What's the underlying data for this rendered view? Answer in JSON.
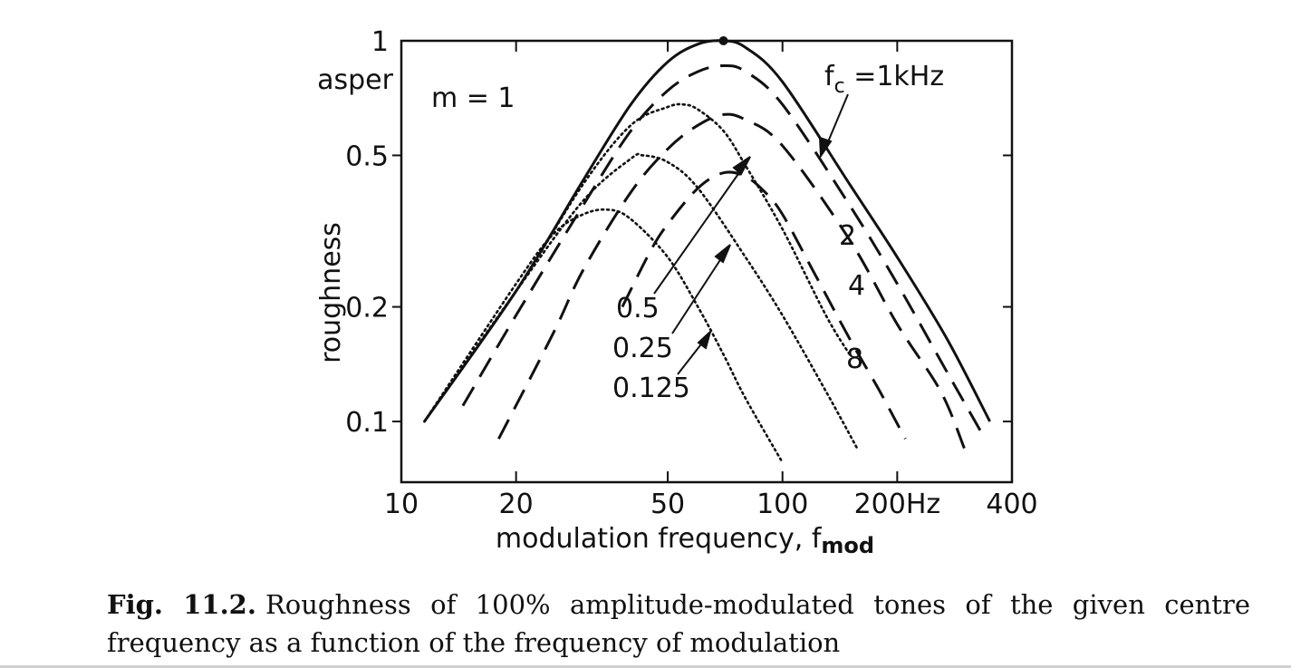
{
  "caption": {
    "label": "Fig. 11.2.",
    "text": "Roughness of 100% amplitude-modulated tones of the given centre frequency as a function of the frequency of modulation"
  },
  "chart_data": {
    "type": "line",
    "xlabel": "modulation frequency, f",
    "xlabel_sub": "mod",
    "ylabel": "roughness",
    "y_unit": "asper",
    "x_scale": "log",
    "y_scale": "log",
    "xlim": [
      10,
      400
    ],
    "ylim": [
      0.08,
      1
    ],
    "x_ticks": [
      {
        "value": 10,
        "label": "10"
      },
      {
        "value": 20,
        "label": "20"
      },
      {
        "value": 50,
        "label": "50"
      },
      {
        "value": 100,
        "label": "100"
      },
      {
        "value": 200,
        "label": "200Hz"
      },
      {
        "value": 400,
        "label": "400"
      }
    ],
    "y_ticks": [
      {
        "value": 1,
        "label": "1"
      },
      {
        "value": 0.5,
        "label": "0.5"
      },
      {
        "value": 0.2,
        "label": "0.2"
      },
      {
        "value": 0.1,
        "label": "0.1"
      }
    ],
    "annotations": [
      {
        "text": "m = 1"
      },
      {
        "text": "f",
        "sub": "c",
        "suffix": " =1kHz"
      },
      {
        "text": "2"
      },
      {
        "text": "4"
      },
      {
        "text": "8"
      },
      {
        "text": "0.5"
      },
      {
        "text": "0.25"
      },
      {
        "text": "0.125"
      }
    ],
    "series": [
      {
        "name": "1kHz",
        "style": "solid",
        "peak_marker": true,
        "x": [
          11.5,
          20,
          30,
          40,
          50,
          60,
          70,
          80,
          100,
          150,
          200,
          270,
          350
        ],
        "y": [
          0.1,
          0.22,
          0.43,
          0.68,
          0.88,
          0.98,
          1.0,
          0.96,
          0.78,
          0.42,
          0.27,
          0.165,
          0.1
        ]
      },
      {
        "name": "2",
        "style": "dash",
        "x": [
          14.5,
          20,
          30,
          40,
          50,
          60,
          70,
          80,
          100,
          150,
          200,
          270,
          340
        ],
        "y": [
          0.11,
          0.19,
          0.37,
          0.58,
          0.74,
          0.83,
          0.86,
          0.83,
          0.68,
          0.37,
          0.23,
          0.135,
          0.09
        ]
      },
      {
        "name": "4",
        "style": "dash",
        "x": [
          18,
          25,
          30,
          40,
          50,
          60,
          70,
          80,
          100,
          150,
          200,
          260,
          300
        ],
        "y": [
          0.09,
          0.17,
          0.25,
          0.4,
          0.52,
          0.6,
          0.64,
          0.62,
          0.53,
          0.3,
          0.18,
          0.12,
          0.085
        ]
      },
      {
        "name": "8",
        "style": "dash",
        "x": [
          38,
          45,
          50,
          60,
          70,
          80,
          90,
          100,
          120,
          150,
          180,
          210
        ],
        "y": [
          0.2,
          0.28,
          0.33,
          0.41,
          0.45,
          0.44,
          0.4,
          0.35,
          0.25,
          0.165,
          0.12,
          0.09
        ]
      },
      {
        "name": "0.5",
        "style": "dot",
        "x": [
          11.5,
          20,
          30,
          40,
          50,
          55,
          60,
          70,
          80,
          100,
          130,
          150
        ],
        "y": [
          0.1,
          0.22,
          0.42,
          0.6,
          0.67,
          0.68,
          0.66,
          0.58,
          0.47,
          0.32,
          0.19,
          0.15
        ]
      },
      {
        "name": "0.25",
        "style": "dot",
        "x": [
          11.5,
          20,
          30,
          40,
          43,
          50,
          60,
          80,
          100,
          130,
          157
        ],
        "y": [
          0.1,
          0.22,
          0.38,
          0.49,
          0.5,
          0.48,
          0.41,
          0.27,
          0.19,
          0.12,
          0.085
        ]
      },
      {
        "name": "0.125",
        "style": "dot",
        "x": [
          11.5,
          20,
          25,
          30,
          35,
          40,
          50,
          60,
          70,
          80,
          100
        ],
        "y": [
          0.1,
          0.23,
          0.31,
          0.35,
          0.36,
          0.34,
          0.27,
          0.2,
          0.15,
          0.115,
          0.078
        ]
      }
    ]
  }
}
